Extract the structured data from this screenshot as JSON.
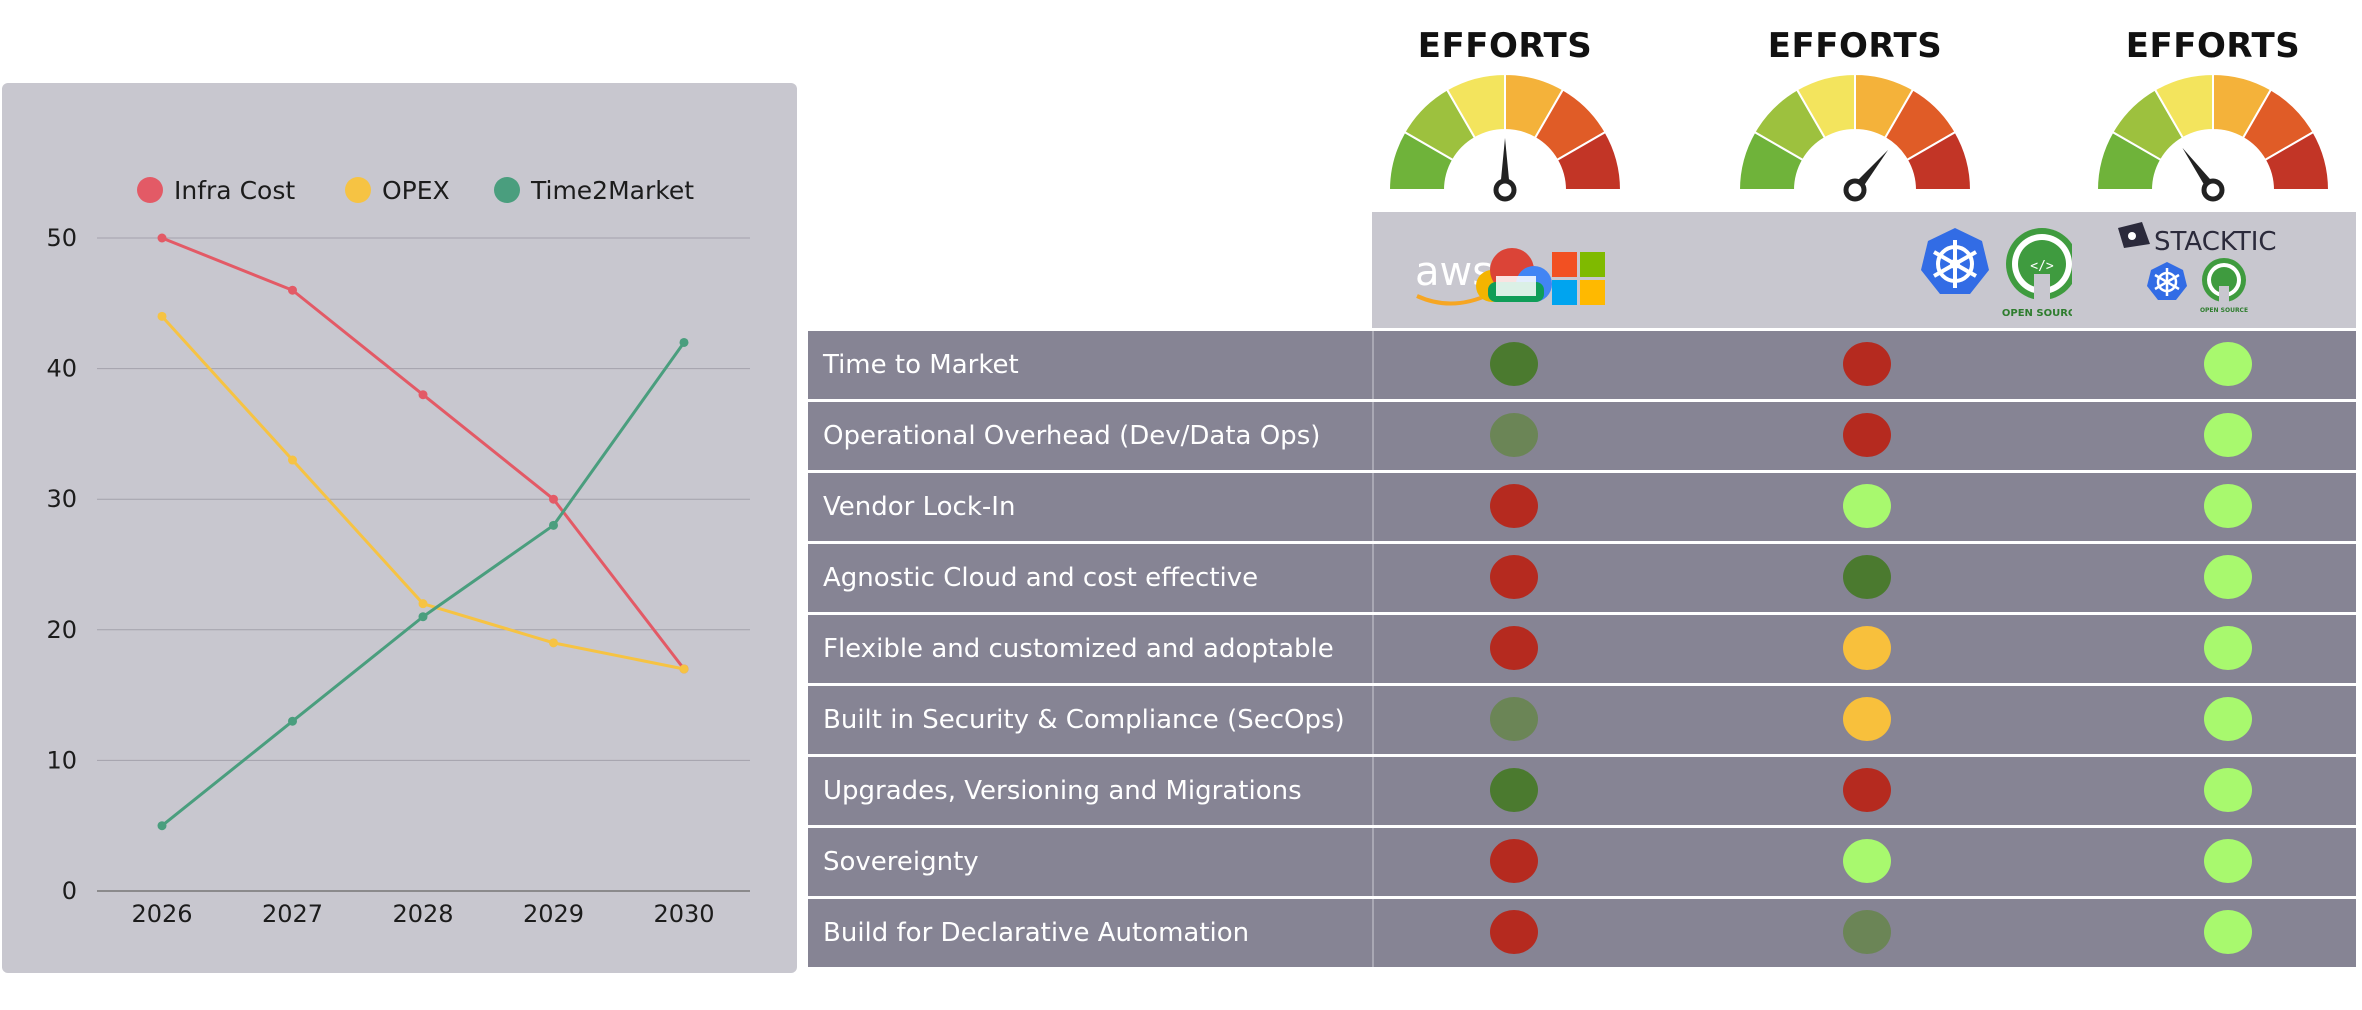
{
  "chart_data": {
    "type": "line",
    "x": [
      "2026",
      "2027",
      "2028",
      "2029",
      "2030"
    ],
    "ylim": [
      0,
      50
    ],
    "yticks": [
      0,
      10,
      20,
      30,
      40,
      50
    ],
    "grid": true,
    "legend_position": "top",
    "series": [
      {
        "name": "Infra Cost",
        "color": "#e35a66",
        "values": [
          50,
          46,
          38,
          30,
          17
        ]
      },
      {
        "name": "OPEX",
        "color": "#f6c343",
        "values": [
          44,
          33,
          22,
          19,
          17
        ]
      },
      {
        "name": "Time2Market",
        "color": "#4a9e7e",
        "values": [
          5,
          13,
          21,
          28,
          42
        ]
      }
    ]
  },
  "gauges": [
    {
      "title": "EFFORTS",
      "level": 0.5
    },
    {
      "title": "EFFORTS",
      "level": 0.72
    },
    {
      "title": "EFFORTS",
      "level": 0.3
    }
  ],
  "logos": {
    "col1": {
      "aws_text": "aws",
      "icon": "cloud-icon",
      "icon2": "windows-icon"
    },
    "col2": {
      "icon": "kubernetes-icon",
      "icon2": "open-source-icon",
      "open_source_text": "OPEN SOURCE"
    },
    "col3": {
      "brand_text": "STACKTIC",
      "icon": "kubernetes-icon",
      "icon2": "open-source-icon",
      "open_source_text": "OPEN SOURCE"
    }
  },
  "status_colors": {
    "dark_green": "#4b7a2f",
    "muted_green": "#6b8556",
    "red": "#b52a1f",
    "light_green": "#a8f96e",
    "yellow": "#f8c03c"
  },
  "rows": [
    {
      "label": "Time to Market",
      "values": [
        "dark_green",
        "red",
        "light_green"
      ]
    },
    {
      "label": "Operational Overhead (Dev/Data Ops)",
      "values": [
        "muted_green",
        "red",
        "light_green"
      ]
    },
    {
      "label": "Vendor Lock-In",
      "values": [
        "red",
        "light_green",
        "light_green"
      ]
    },
    {
      "label": "Agnostic Cloud and cost effective",
      "values": [
        "red",
        "dark_green",
        "light_green"
      ]
    },
    {
      "label": "Flexible and customized and adoptable",
      "values": [
        "red",
        "yellow",
        "light_green"
      ]
    },
    {
      "label": "Built in Security & Compliance (SecOps)",
      "values": [
        "muted_green",
        "yellow",
        "light_green"
      ]
    },
    {
      "label": "Upgrades, Versioning and Migrations",
      "values": [
        "dark_green",
        "red",
        "light_green"
      ]
    },
    {
      "label": "Sovereignty",
      "values": [
        "red",
        "light_green",
        "light_green"
      ]
    },
    {
      "label": "Build for Declarative Automation",
      "values": [
        "red",
        "muted_green",
        "light_green"
      ]
    }
  ]
}
